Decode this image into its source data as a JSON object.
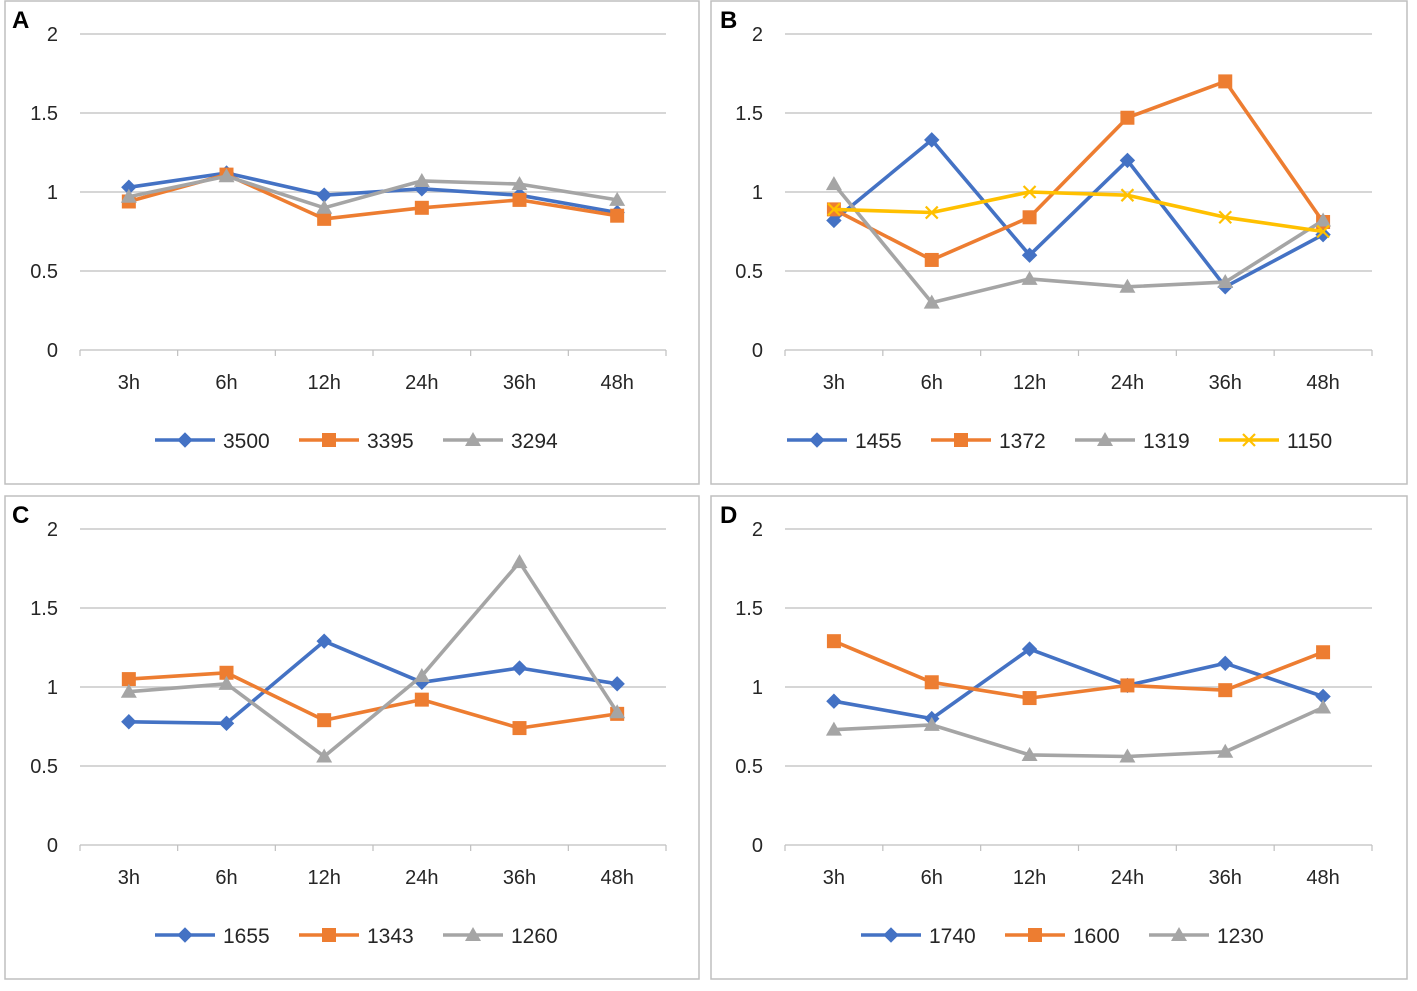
{
  "colors": {
    "blue": "#4472C4",
    "orange": "#ED7D31",
    "gray": "#A5A5A5",
    "yellow": "#FFC000"
  },
  "chart_data": [
    {
      "type": "line",
      "panel_label": "A",
      "categories": [
        "3h",
        "6h",
        "12h",
        "24h",
        "36h",
        "48h"
      ],
      "ylim": [
        0,
        2
      ],
      "yticks": [
        "0",
        "0.5",
        "1",
        "1.5",
        "2"
      ],
      "grid": true,
      "legend_position": "bottom",
      "series": [
        {
          "name": "3500",
          "color": "#4472C4",
          "marker": "diamond",
          "values": [
            1.03,
            1.12,
            0.98,
            1.02,
            0.98,
            0.87
          ]
        },
        {
          "name": "3395",
          "color": "#ED7D31",
          "marker": "square",
          "values": [
            0.94,
            1.11,
            0.83,
            0.9,
            0.95,
            0.85
          ]
        },
        {
          "name": "3294",
          "color": "#A5A5A5",
          "marker": "triangle",
          "values": [
            0.97,
            1.1,
            0.9,
            1.07,
            1.05,
            0.95
          ]
        }
      ]
    },
    {
      "type": "line",
      "panel_label": "B",
      "categories": [
        "3h",
        "6h",
        "12h",
        "24h",
        "36h",
        "48h"
      ],
      "ylim": [
        0,
        2
      ],
      "yticks": [
        "0",
        "0.5",
        "1",
        "1.5",
        "2"
      ],
      "grid": true,
      "legend_position": "bottom",
      "series": [
        {
          "name": "1455",
          "color": "#4472C4",
          "marker": "diamond",
          "values": [
            0.82,
            1.33,
            0.6,
            1.2,
            0.4,
            0.73
          ]
        },
        {
          "name": "1372",
          "color": "#ED7D31",
          "marker": "square",
          "values": [
            0.89,
            0.57,
            0.84,
            1.47,
            1.7,
            0.81
          ]
        },
        {
          "name": "1319",
          "color": "#A5A5A5",
          "marker": "triangle",
          "values": [
            1.05,
            0.3,
            0.45,
            0.4,
            0.43,
            0.82
          ]
        },
        {
          "name": "1150",
          "color": "#FFC000",
          "marker": "cross",
          "values": [
            0.89,
            0.87,
            1.0,
            0.98,
            0.84,
            0.75
          ]
        }
      ]
    },
    {
      "type": "line",
      "panel_label": "C",
      "categories": [
        "3h",
        "6h",
        "12h",
        "24h",
        "36h",
        "48h"
      ],
      "ylim": [
        0,
        2
      ],
      "yticks": [
        "0",
        "0.5",
        "1",
        "1.5",
        "2"
      ],
      "grid": true,
      "legend_position": "bottom",
      "series": [
        {
          "name": "1655",
          "color": "#4472C4",
          "marker": "diamond",
          "values": [
            0.78,
            0.77,
            1.29,
            1.03,
            1.12,
            1.02
          ]
        },
        {
          "name": "1343",
          "color": "#ED7D31",
          "marker": "square",
          "values": [
            1.05,
            1.09,
            0.79,
            0.92,
            0.74,
            0.83
          ]
        },
        {
          "name": "1260",
          "color": "#A5A5A5",
          "marker": "triangle",
          "values": [
            0.97,
            1.02,
            0.56,
            1.07,
            1.79,
            0.84
          ]
        }
      ]
    },
    {
      "type": "line",
      "panel_label": "D",
      "categories": [
        "3h",
        "6h",
        "12h",
        "24h",
        "36h",
        "48h"
      ],
      "ylim": [
        0,
        2
      ],
      "yticks": [
        "0",
        "0.5",
        "1",
        "1.5",
        "2"
      ],
      "grid": true,
      "legend_position": "bottom",
      "series": [
        {
          "name": "1740",
          "color": "#4472C4",
          "marker": "diamond",
          "values": [
            0.91,
            0.8,
            1.24,
            1.01,
            1.15,
            0.94
          ]
        },
        {
          "name": "1600",
          "color": "#ED7D31",
          "marker": "square",
          "values": [
            1.29,
            1.03,
            0.93,
            1.01,
            0.98,
            1.22
          ]
        },
        {
          "name": "1230",
          "color": "#A5A5A5",
          "marker": "triangle",
          "values": [
            0.73,
            0.76,
            0.57,
            0.56,
            0.59,
            0.87
          ]
        }
      ]
    }
  ]
}
